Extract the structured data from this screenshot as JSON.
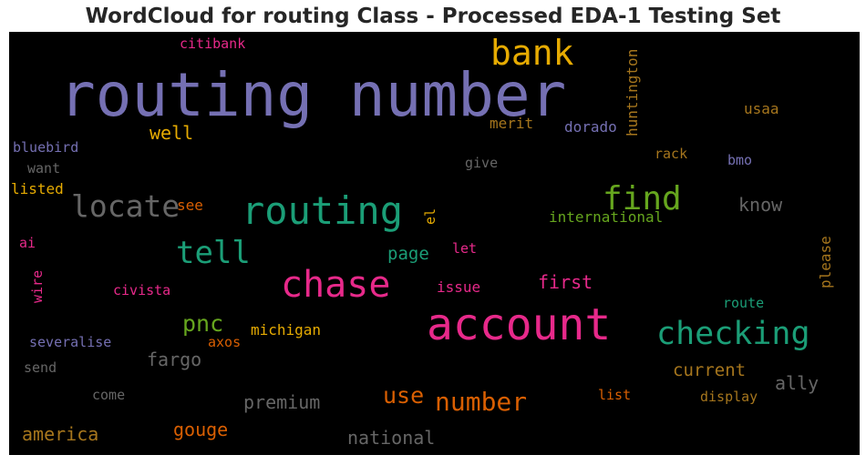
{
  "chart_data": {
    "type": "wordcloud",
    "title": "WordCloud for routing Class - Processed EDA-1 Testing Set",
    "background": "#000000",
    "colormap": "Dark2",
    "words": [
      {
        "text": "routing number",
        "color": "#7570b3"
      },
      {
        "text": "account",
        "color": "#e7298a"
      },
      {
        "text": "routing",
        "color": "#1b9e77"
      },
      {
        "text": "chase",
        "color": "#e7298a"
      },
      {
        "text": "bank",
        "color": "#e6ab02"
      },
      {
        "text": "find",
        "color": "#66a61e"
      },
      {
        "text": "checking",
        "color": "#1b9e77"
      },
      {
        "text": "locate",
        "color": "#666666"
      },
      {
        "text": "tell",
        "color": "#1b9e77"
      },
      {
        "text": "number",
        "color": "#d95f02"
      },
      {
        "text": "use",
        "color": "#d95f02"
      },
      {
        "text": "pnc",
        "color": "#66a61e"
      },
      {
        "text": "well",
        "color": "#e6ab02"
      },
      {
        "text": "know",
        "color": "#666666"
      },
      {
        "text": "first",
        "color": "#e7298a"
      },
      {
        "text": "page",
        "color": "#1b9e77"
      },
      {
        "text": "fargo",
        "color": "#666666"
      },
      {
        "text": "current",
        "color": "#a6761d"
      },
      {
        "text": "ally",
        "color": "#666666"
      },
      {
        "text": "premium",
        "color": "#666666"
      },
      {
        "text": "gouge",
        "color": "#d95f02"
      },
      {
        "text": "america",
        "color": "#a6761d"
      },
      {
        "text": "national",
        "color": "#666666"
      },
      {
        "text": "huntington",
        "color": "#a6761d"
      },
      {
        "text": "michigan",
        "color": "#e6ab02"
      },
      {
        "text": "international",
        "color": "#66a61e"
      },
      {
        "text": "please",
        "color": "#a6761d"
      },
      {
        "text": "citibank",
        "color": "#e7298a"
      },
      {
        "text": "merit",
        "color": "#a6761d"
      },
      {
        "text": "dorado",
        "color": "#7570b3"
      },
      {
        "text": "usaa",
        "color": "#a6761d"
      },
      {
        "text": "bluebird",
        "color": "#7570b3"
      },
      {
        "text": "want",
        "color": "#666666"
      },
      {
        "text": "give",
        "color": "#666666"
      },
      {
        "text": "rack",
        "color": "#a6761d"
      },
      {
        "text": "bmo",
        "color": "#7570b3"
      },
      {
        "text": "listed",
        "color": "#e6ab02"
      },
      {
        "text": "see",
        "color": "#d95f02"
      },
      {
        "text": "el",
        "color": "#e6ab02"
      },
      {
        "text": "ai",
        "color": "#e7298a"
      },
      {
        "text": "let",
        "color": "#e7298a"
      },
      {
        "text": "wire",
        "color": "#e7298a"
      },
      {
        "text": "civista",
        "color": "#e7298a"
      },
      {
        "text": "issue",
        "color": "#e7298a"
      },
      {
        "text": "route",
        "color": "#1b9e77"
      },
      {
        "text": "severalise",
        "color": "#7570b3"
      },
      {
        "text": "axos",
        "color": "#d95f02"
      },
      {
        "text": "send",
        "color": "#666666"
      },
      {
        "text": "come",
        "color": "#666666"
      },
      {
        "text": "list",
        "color": "#d95f02"
      },
      {
        "text": "display",
        "color": "#a6761d"
      }
    ]
  }
}
